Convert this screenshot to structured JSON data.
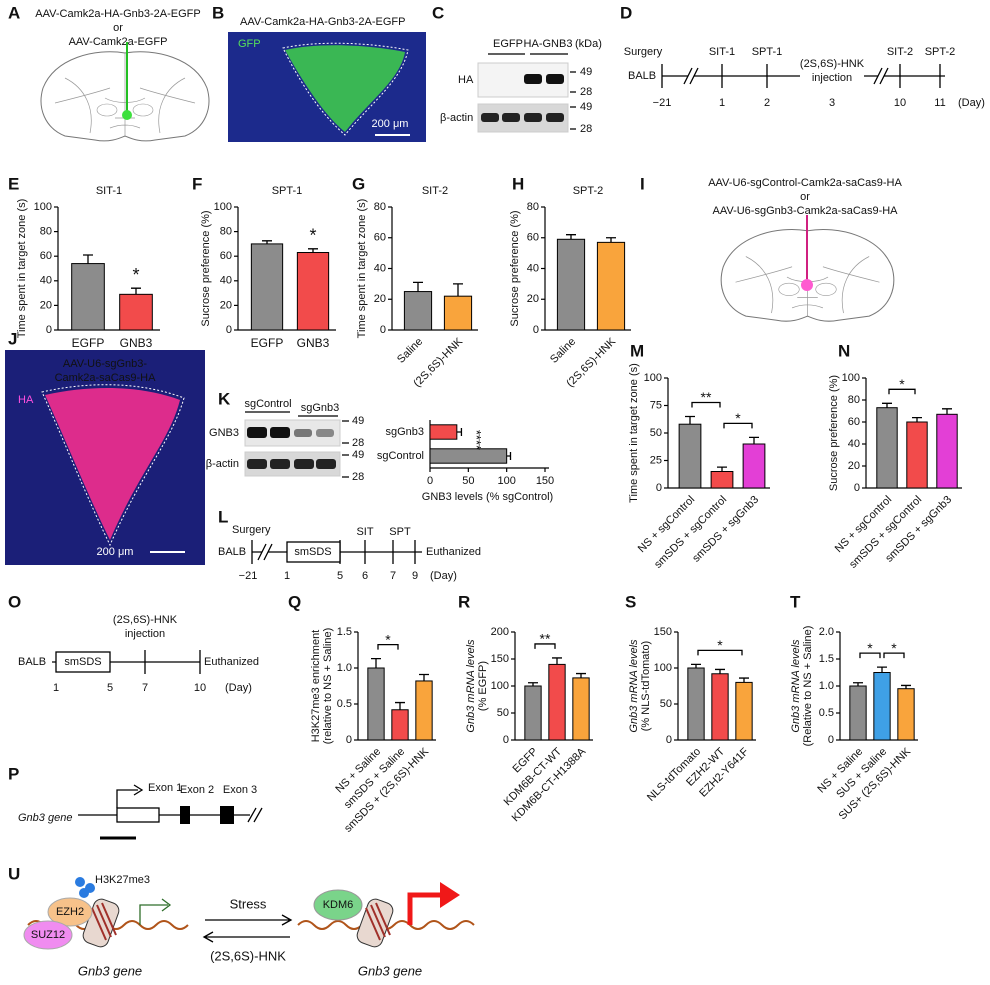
{
  "panel_labels": [
    "A",
    "B",
    "C",
    "D",
    "E",
    "F",
    "G",
    "H",
    "I",
    "J",
    "K",
    "L",
    "M",
    "N",
    "O",
    "P",
    "Q",
    "R",
    "S",
    "T",
    "U"
  ],
  "brain_a": {
    "lines": [
      "AAV-Camk2a-HA-Gnb3-2A-EGFP",
      "or",
      "AAV-Camk2a-EGFP"
    ]
  },
  "image_b": {
    "title": "AAV-Camk2a-HA-Gnb3-2A-EGFP",
    "channel": "GFP",
    "scale_bar": "200 μm"
  },
  "blot_c": {
    "lanes": [
      "EGFP",
      "HA-GNB3"
    ],
    "unit": "(kDa)",
    "rows": [
      "HA",
      "β-actin"
    ],
    "markers": [
      "49",
      "28",
      "49",
      "28"
    ]
  },
  "timeline_d": {
    "start": "BALB",
    "events": [
      "Surgery",
      "SIT-1",
      "SPT-1",
      "(2S,6S)-HNK",
      "injection",
      "SIT-2",
      "SPT-2"
    ],
    "days": [
      "−21",
      "1",
      "2",
      "3",
      "10",
      "11"
    ],
    "unit": "(Day)"
  },
  "brain_i": {
    "lines": [
      "AAV-U6-sgControl-Camk2a-saCas9-HA",
      "or",
      "AAV-U6-sgGnb3-Camk2a-saCas9-HA"
    ]
  },
  "image_j": {
    "title": [
      "AAV-U6-sgGnb3-",
      "Camk2a-saCas9-HA"
    ],
    "channel": "HA",
    "scale_bar": "200 μm"
  },
  "blot_k": {
    "lanes": [
      "sgControl",
      "sgGnb3"
    ],
    "rows": [
      "GNB3",
      "β-actin"
    ],
    "markers": [
      "49",
      "28",
      "49",
      "28"
    ]
  },
  "timeline_l": {
    "start": "BALB",
    "events": [
      "Surgery",
      "smSDS",
      "SIT",
      "SPT",
      "Euthanized"
    ],
    "days": [
      "−21",
      "1",
      "5",
      "6",
      "7",
      "9"
    ],
    "unit": "(Day)"
  },
  "timeline_o": {
    "start": "BALB",
    "events": [
      "(2S,6S)-HNK",
      "injection",
      "smSDS",
      "Euthanized"
    ],
    "days": [
      "1",
      "5",
      "7",
      "10"
    ],
    "unit": "(Day)"
  },
  "gene_p": {
    "gene": "Gnb3 gene",
    "exons": [
      "Exon 1",
      "Exon 2",
      "Exon 3"
    ]
  },
  "scheme_u": {
    "mark": "H3K27me3",
    "proteins": [
      "EZH2",
      "SUZ12",
      "KDM6"
    ],
    "gene": [
      "Gnb3 gene",
      "Gnb3 gene"
    ],
    "forward": "Stress",
    "reverse": "(2S,6S)-HNK"
  },
  "chart_data": [
    {
      "type": "bar",
      "panel": "E",
      "title": "SIT-1",
      "y_label": [
        "Time spent in target zone (s)"
      ],
      "categories": [
        "EGFP",
        "GNB3"
      ],
      "values": [
        54,
        29
      ],
      "errors": [
        7,
        5
      ],
      "colors": [
        "#8c8c8c",
        "#f24b4b"
      ],
      "ylim": [
        0,
        100
      ],
      "yticks": [
        0,
        20,
        40,
        60,
        80,
        100
      ],
      "significance": [
        {
          "label": "*",
          "bars": [
            1
          ]
        }
      ]
    },
    {
      "type": "bar",
      "panel": "F",
      "title": "SPT-1",
      "y_label": [
        "Sucrose preference (%)"
      ],
      "categories": [
        "EGFP",
        "GNB3"
      ],
      "values": [
        70,
        63
      ],
      "errors": [
        2.5,
        3
      ],
      "colors": [
        "#8c8c8c",
        "#f24b4b"
      ],
      "ylim": [
        0,
        100
      ],
      "yticks": [
        0,
        20,
        40,
        60,
        80,
        100
      ],
      "significance": [
        {
          "label": "*",
          "bars": [
            1
          ]
        }
      ]
    },
    {
      "type": "bar",
      "panel": "G",
      "title": "SIT-2",
      "y_label": [
        "Time spent in target zone (s)"
      ],
      "categories": [
        "Saline",
        "(2S,6S)-HNK"
      ],
      "values": [
        25,
        22
      ],
      "errors": [
        6,
        8
      ],
      "colors": [
        "#8c8c8c",
        "#f9a43c"
      ],
      "ylim": [
        0,
        80
      ],
      "yticks": [
        0,
        20,
        40,
        60,
        80
      ],
      "significance": []
    },
    {
      "type": "bar",
      "panel": "H",
      "title": "SPT-2",
      "y_label": [
        "Sucrose preference (%)"
      ],
      "categories": [
        "Saline",
        "(2S,6S)-HNK"
      ],
      "values": [
        59,
        57
      ],
      "errors": [
        3,
        3
      ],
      "colors": [
        "#8c8c8c",
        "#f9a43c"
      ],
      "ylim": [
        0,
        80
      ],
      "yticks": [
        0,
        20,
        40,
        60,
        80
      ],
      "significance": []
    },
    {
      "type": "barh",
      "panel": "K",
      "x_label": "GNB3 levels (% sgControl)",
      "categories": [
        "sgGnb3",
        "sgControl"
      ],
      "values": [
        35,
        100
      ],
      "errors": [
        6,
        5
      ],
      "colors": [
        "#f24b4b",
        "#8c8c8c"
      ],
      "xlim": [
        0,
        150
      ],
      "xticks": [
        0,
        50,
        100,
        150
      ],
      "significance": [
        {
          "label": "****",
          "bars": [
            0
          ]
        }
      ]
    },
    {
      "type": "bar",
      "panel": "M",
      "y_label": [
        "Time spent in target zone (s)"
      ],
      "categories": [
        "NS + sgControl",
        "smSDS + sgControl",
        "smSDS + sgGnb3"
      ],
      "values": [
        58,
        15,
        40
      ],
      "errors": [
        7,
        4,
        6
      ],
      "colors": [
        "#8c8c8c",
        "#f24b4b",
        "#e33fd6"
      ],
      "ylim": [
        0,
        100
      ],
      "yticks": [
        0,
        25,
        50,
        75,
        100
      ],
      "significance": [
        {
          "label": "**",
          "bars": [
            0,
            1
          ]
        },
        {
          "label": "*",
          "bars": [
            1,
            2
          ]
        }
      ]
    },
    {
      "type": "bar",
      "panel": "N",
      "y_label": [
        "Sucrose preference (%)"
      ],
      "categories": [
        "NS + sgControl",
        "smSDS + sgControl",
        "smSDS + sgGnb3"
      ],
      "values": [
        73,
        60,
        67
      ],
      "errors": [
        4,
        4,
        5
      ],
      "colors": [
        "#8c8c8c",
        "#f24b4b",
        "#e33fd6"
      ],
      "ylim": [
        0,
        100
      ],
      "yticks": [
        0,
        20,
        40,
        60,
        80,
        100
      ],
      "significance": [
        {
          "label": "*",
          "bars": [
            0,
            1
          ]
        }
      ]
    },
    {
      "type": "bar",
      "panel": "Q",
      "y_label": [
        "H3K27me3 enrichment",
        "(relative to NS + Saline)"
      ],
      "categories": [
        "NS + Saline",
        "smSDS + Saline",
        "smSDS + (2S,6S)-HNK"
      ],
      "values": [
        1.0,
        0.42,
        0.82
      ],
      "errors": [
        0.13,
        0.1,
        0.09
      ],
      "colors": [
        "#8c8c8c",
        "#f24b4b",
        "#f9a43c"
      ],
      "ylim": [
        0,
        1.5
      ],
      "yticks": [
        0,
        0.5,
        {
          "value": 1,
          "label": "1.0"
        },
        1.5
      ],
      "significance": [
        {
          "label": "*",
          "bars": [
            0,
            1
          ]
        }
      ]
    },
    {
      "type": "bar",
      "panel": "R",
      "y_label": [
        "Gnb3 mRNA levels",
        "(% EGFP)"
      ],
      "categories": [
        "EGFP",
        "KDM6B-CT-WT",
        "KDM6B-CT-H1388A"
      ],
      "values": [
        100,
        140,
        115
      ],
      "errors": [
        6,
        12,
        8
      ],
      "colors": [
        "#8c8c8c",
        "#f24b4b",
        "#f9a43c"
      ],
      "ylim": [
        0,
        200
      ],
      "yticks": [
        0,
        50,
        100,
        150,
        200
      ],
      "significance": [
        {
          "label": "**",
          "bars": [
            0,
            1
          ]
        }
      ]
    },
    {
      "type": "bar",
      "panel": "S",
      "y_label": [
        "Gnb3 mRNA levels",
        "(% NLS-tdTomato)"
      ],
      "categories": [
        "NLS-tdTomato",
        "EZH2-WT",
        "EZH2-Y641F"
      ],
      "values": [
        100,
        92,
        80
      ],
      "errors": [
        5,
        6,
        6
      ],
      "colors": [
        "#8c8c8c",
        "#f24b4b",
        "#f9a43c"
      ],
      "ylim": [
        0,
        150
      ],
      "yticks": [
        0,
        50,
        100,
        150
      ],
      "significance": [
        {
          "label": "*",
          "bars": [
            0,
            2
          ]
        }
      ]
    },
    {
      "type": "bar",
      "panel": "T",
      "y_label": [
        "Gnb3 mRNA levels",
        "(Relative to NS + Saline)"
      ],
      "categories": [
        "NS + Saline",
        "SUS + Saline",
        "SUS+ (2S,6S)-HNK"
      ],
      "values": [
        1.0,
        1.25,
        0.95
      ],
      "errors": [
        0.06,
        0.1,
        0.06
      ],
      "colors": [
        "#8c8c8c",
        "#3fa0e6",
        "#f9a43c"
      ],
      "ylim": [
        0,
        2
      ],
      "yticks": [
        0,
        0.5,
        {
          "value": 1,
          "label": "1.0"
        },
        1.5,
        {
          "value": 2,
          "label": "2.0"
        }
      ],
      "significance": [
        {
          "label": "*",
          "bars": [
            0,
            1
          ]
        },
        {
          "label": "*",
          "bars": [
            1,
            2
          ]
        }
      ]
    }
  ]
}
